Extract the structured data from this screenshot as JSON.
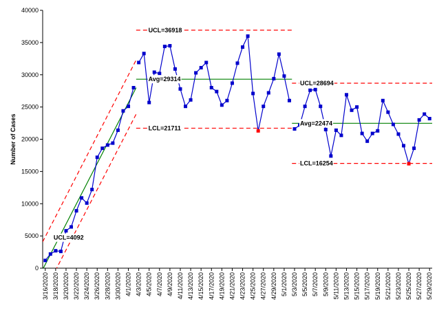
{
  "chart_data": {
    "type": "line",
    "title": "",
    "xlabel": "",
    "ylabel": "Number of Cases",
    "ylim": [
      0,
      40000
    ],
    "yticks": [
      0,
      5000,
      10000,
      15000,
      20000,
      25000,
      30000,
      35000,
      40000
    ],
    "yticks_text": [
      "0",
      "5000",
      "10000",
      "15000",
      "20000",
      "25000",
      "30000",
      "35000",
      "40000"
    ],
    "x_labels": [
      "3/16/2020",
      "3/18/2020",
      "3/20/2020",
      "3/22/2020",
      "3/24/2020",
      "3/26/2020",
      "3/28/2020",
      "3/30/2020",
      "4/1/2020",
      "4/3/2020",
      "4/5/2020",
      "4/7/2020",
      "4/9/2020",
      "4/11/2020",
      "4/13/2020",
      "4/15/2020",
      "4/17/2020",
      "4/19/2020",
      "4/21/2020",
      "4/23/2020",
      "4/25/2020",
      "4/27/2020",
      "4/29/2020",
      "5/1/2020",
      "5/3/2020",
      "5/5/2020",
      "5/7/2020",
      "5/9/2020",
      "5/11/2020",
      "5/13/2020",
      "5/15/2020",
      "5/17/2020",
      "5/19/2020",
      "5/21/2020",
      "5/23/2020",
      "5/25/2020",
      "5/27/2020",
      "5/29/2020"
    ],
    "grid": false,
    "series": [
      {
        "segment": 1,
        "points": [
          {
            "x": "3/16/2020",
            "y": 1200
          },
          {
            "x": "3/17/2020",
            "y": 2200
          },
          {
            "x": "3/18/2020",
            "y": 2700
          },
          {
            "x": "3/19/2020",
            "y": 2600
          },
          {
            "x": "3/20/2020",
            "y": 5800
          },
          {
            "x": "3/21/2020",
            "y": 6400
          },
          {
            "x": "3/22/2020",
            "y": 8900
          },
          {
            "x": "3/23/2020",
            "y": 10900
          },
          {
            "x": "3/24/2020",
            "y": 10100
          },
          {
            "x": "3/25/2020",
            "y": 12200
          },
          {
            "x": "3/26/2020",
            "y": 17200
          },
          {
            "x": "3/27/2020",
            "y": 18600
          },
          {
            "x": "3/28/2020",
            "y": 19100
          },
          {
            "x": "3/29/2020",
            "y": 19400
          },
          {
            "x": "3/30/2020",
            "y": 21400
          },
          {
            "x": "3/31/2020",
            "y": 24400
          },
          {
            "x": "4/1/2020",
            "y": 25100
          },
          {
            "x": "4/2/2020",
            "y": 28000
          }
        ]
      },
      {
        "segment": 2,
        "points": [
          {
            "x": "4/3/2020",
            "y": 31900
          },
          {
            "x": "4/4/2020",
            "y": 33300
          },
          {
            "x": "4/5/2020",
            "y": 25700
          },
          {
            "x": "4/6/2020",
            "y": 30400
          },
          {
            "x": "4/7/2020",
            "y": 30200
          },
          {
            "x": "4/8/2020",
            "y": 34400
          },
          {
            "x": "4/9/2020",
            "y": 34500
          },
          {
            "x": "4/10/2020",
            "y": 30900
          },
          {
            "x": "4/11/2020",
            "y": 27800
          },
          {
            "x": "4/12/2020",
            "y": 25100
          },
          {
            "x": "4/13/2020",
            "y": 26100
          },
          {
            "x": "4/14/2020",
            "y": 30300
          },
          {
            "x": "4/15/2020",
            "y": 31100
          },
          {
            "x": "4/16/2020",
            "y": 31900
          },
          {
            "x": "4/17/2020",
            "y": 28000
          },
          {
            "x": "4/18/2020",
            "y": 27400
          },
          {
            "x": "4/19/2020",
            "y": 25300
          },
          {
            "x": "4/20/2020",
            "y": 26000
          },
          {
            "x": "4/21/2020",
            "y": 28700
          },
          {
            "x": "4/22/2020",
            "y": 31800
          },
          {
            "x": "4/23/2020",
            "y": 34300
          },
          {
            "x": "4/24/2020",
            "y": 36000
          },
          {
            "x": "4/25/2020",
            "y": 27100
          },
          {
            "x": "4/26/2020",
            "y": 21300,
            "highlight": true
          },
          {
            "x": "4/27/2020",
            "y": 25100
          },
          {
            "x": "4/28/2020",
            "y": 27200
          },
          {
            "x": "4/29/2020",
            "y": 29400
          },
          {
            "x": "4/30/2020",
            "y": 33200
          },
          {
            "x": "5/1/2020",
            "y": 29800
          },
          {
            "x": "5/2/2020",
            "y": 26000
          }
        ]
      },
      {
        "segment": 3,
        "points": [
          {
            "x": "5/3/2020",
            "y": 21600
          },
          {
            "x": "5/4/2020",
            "y": 22200
          },
          {
            "x": "5/5/2020",
            "y": 25100
          },
          {
            "x": "5/6/2020",
            "y": 27600
          },
          {
            "x": "5/7/2020",
            "y": 27700
          },
          {
            "x": "5/8/2020",
            "y": 25100
          },
          {
            "x": "5/9/2020",
            "y": 21500
          },
          {
            "x": "5/10/2020",
            "y": 17400
          },
          {
            "x": "5/11/2020",
            "y": 21400
          },
          {
            "x": "5/12/2020",
            "y": 20600
          },
          {
            "x": "5/13/2020",
            "y": 26900
          },
          {
            "x": "5/14/2020",
            "y": 24500
          },
          {
            "x": "5/15/2020",
            "y": 25000
          },
          {
            "x": "5/16/2020",
            "y": 20900
          },
          {
            "x": "5/17/2020",
            "y": 19700
          },
          {
            "x": "5/18/2020",
            "y": 20900
          },
          {
            "x": "5/19/2020",
            "y": 21300
          },
          {
            "x": "5/20/2020",
            "y": 26000
          },
          {
            "x": "5/21/2020",
            "y": 24200
          },
          {
            "x": "5/22/2020",
            "y": 22300
          },
          {
            "x": "5/23/2020",
            "y": 20800
          },
          {
            "x": "5/24/2020",
            "y": 19000
          },
          {
            "x": "5/25/2020",
            "y": 16200,
            "highlight": true
          },
          {
            "x": "5/26/2020",
            "y": 18600
          },
          {
            "x": "5/27/2020",
            "y": 23000
          },
          {
            "x": "5/28/2020",
            "y": 23900
          },
          {
            "x": "5/29/2020",
            "y": 23200
          }
        ]
      }
    ],
    "control_limits": [
      {
        "segment": 1,
        "type": "trend",
        "x_range": [
          "3/16/2020",
          "4/2/2020"
        ],
        "center": [
          -200,
          28000
        ],
        "ucl": [
          4092,
          32300
        ],
        "lcl": [
          -4200,
          23900
        ],
        "labels": [
          {
            "text": "UCL=4092",
            "anchor": "center"
          }
        ]
      },
      {
        "segment": 2,
        "type": "flat",
        "x_range": [
          "4/3/2020",
          "5/2/2020"
        ],
        "avg": 29314,
        "ucl": 36918,
        "lcl": 21711,
        "labels": [
          {
            "text": "UCL=36918",
            "anchor": "ucl"
          },
          {
            "text": "Avg=29314",
            "anchor": "avg"
          },
          {
            "text": "LCL=21711",
            "anchor": "lcl"
          }
        ]
      },
      {
        "segment": 3,
        "type": "flat",
        "x_range": [
          "5/3/2020",
          "5/29/2020"
        ],
        "avg": 22474,
        "ucl": 28694,
        "lcl": 16254,
        "labels": [
          {
            "text": "UCL=28694",
            "anchor": "ucl"
          },
          {
            "text": "Avg=22474",
            "anchor": "avg"
          },
          {
            "text": "LCL=16254",
            "anchor": "lcl"
          }
        ]
      }
    ],
    "colors": {
      "series": "#0000CC",
      "marker": "#0000CC",
      "highlight": "#FF0000",
      "center_line": "#008000",
      "control_limit": "#FF0000",
      "axis": "#000000"
    }
  }
}
